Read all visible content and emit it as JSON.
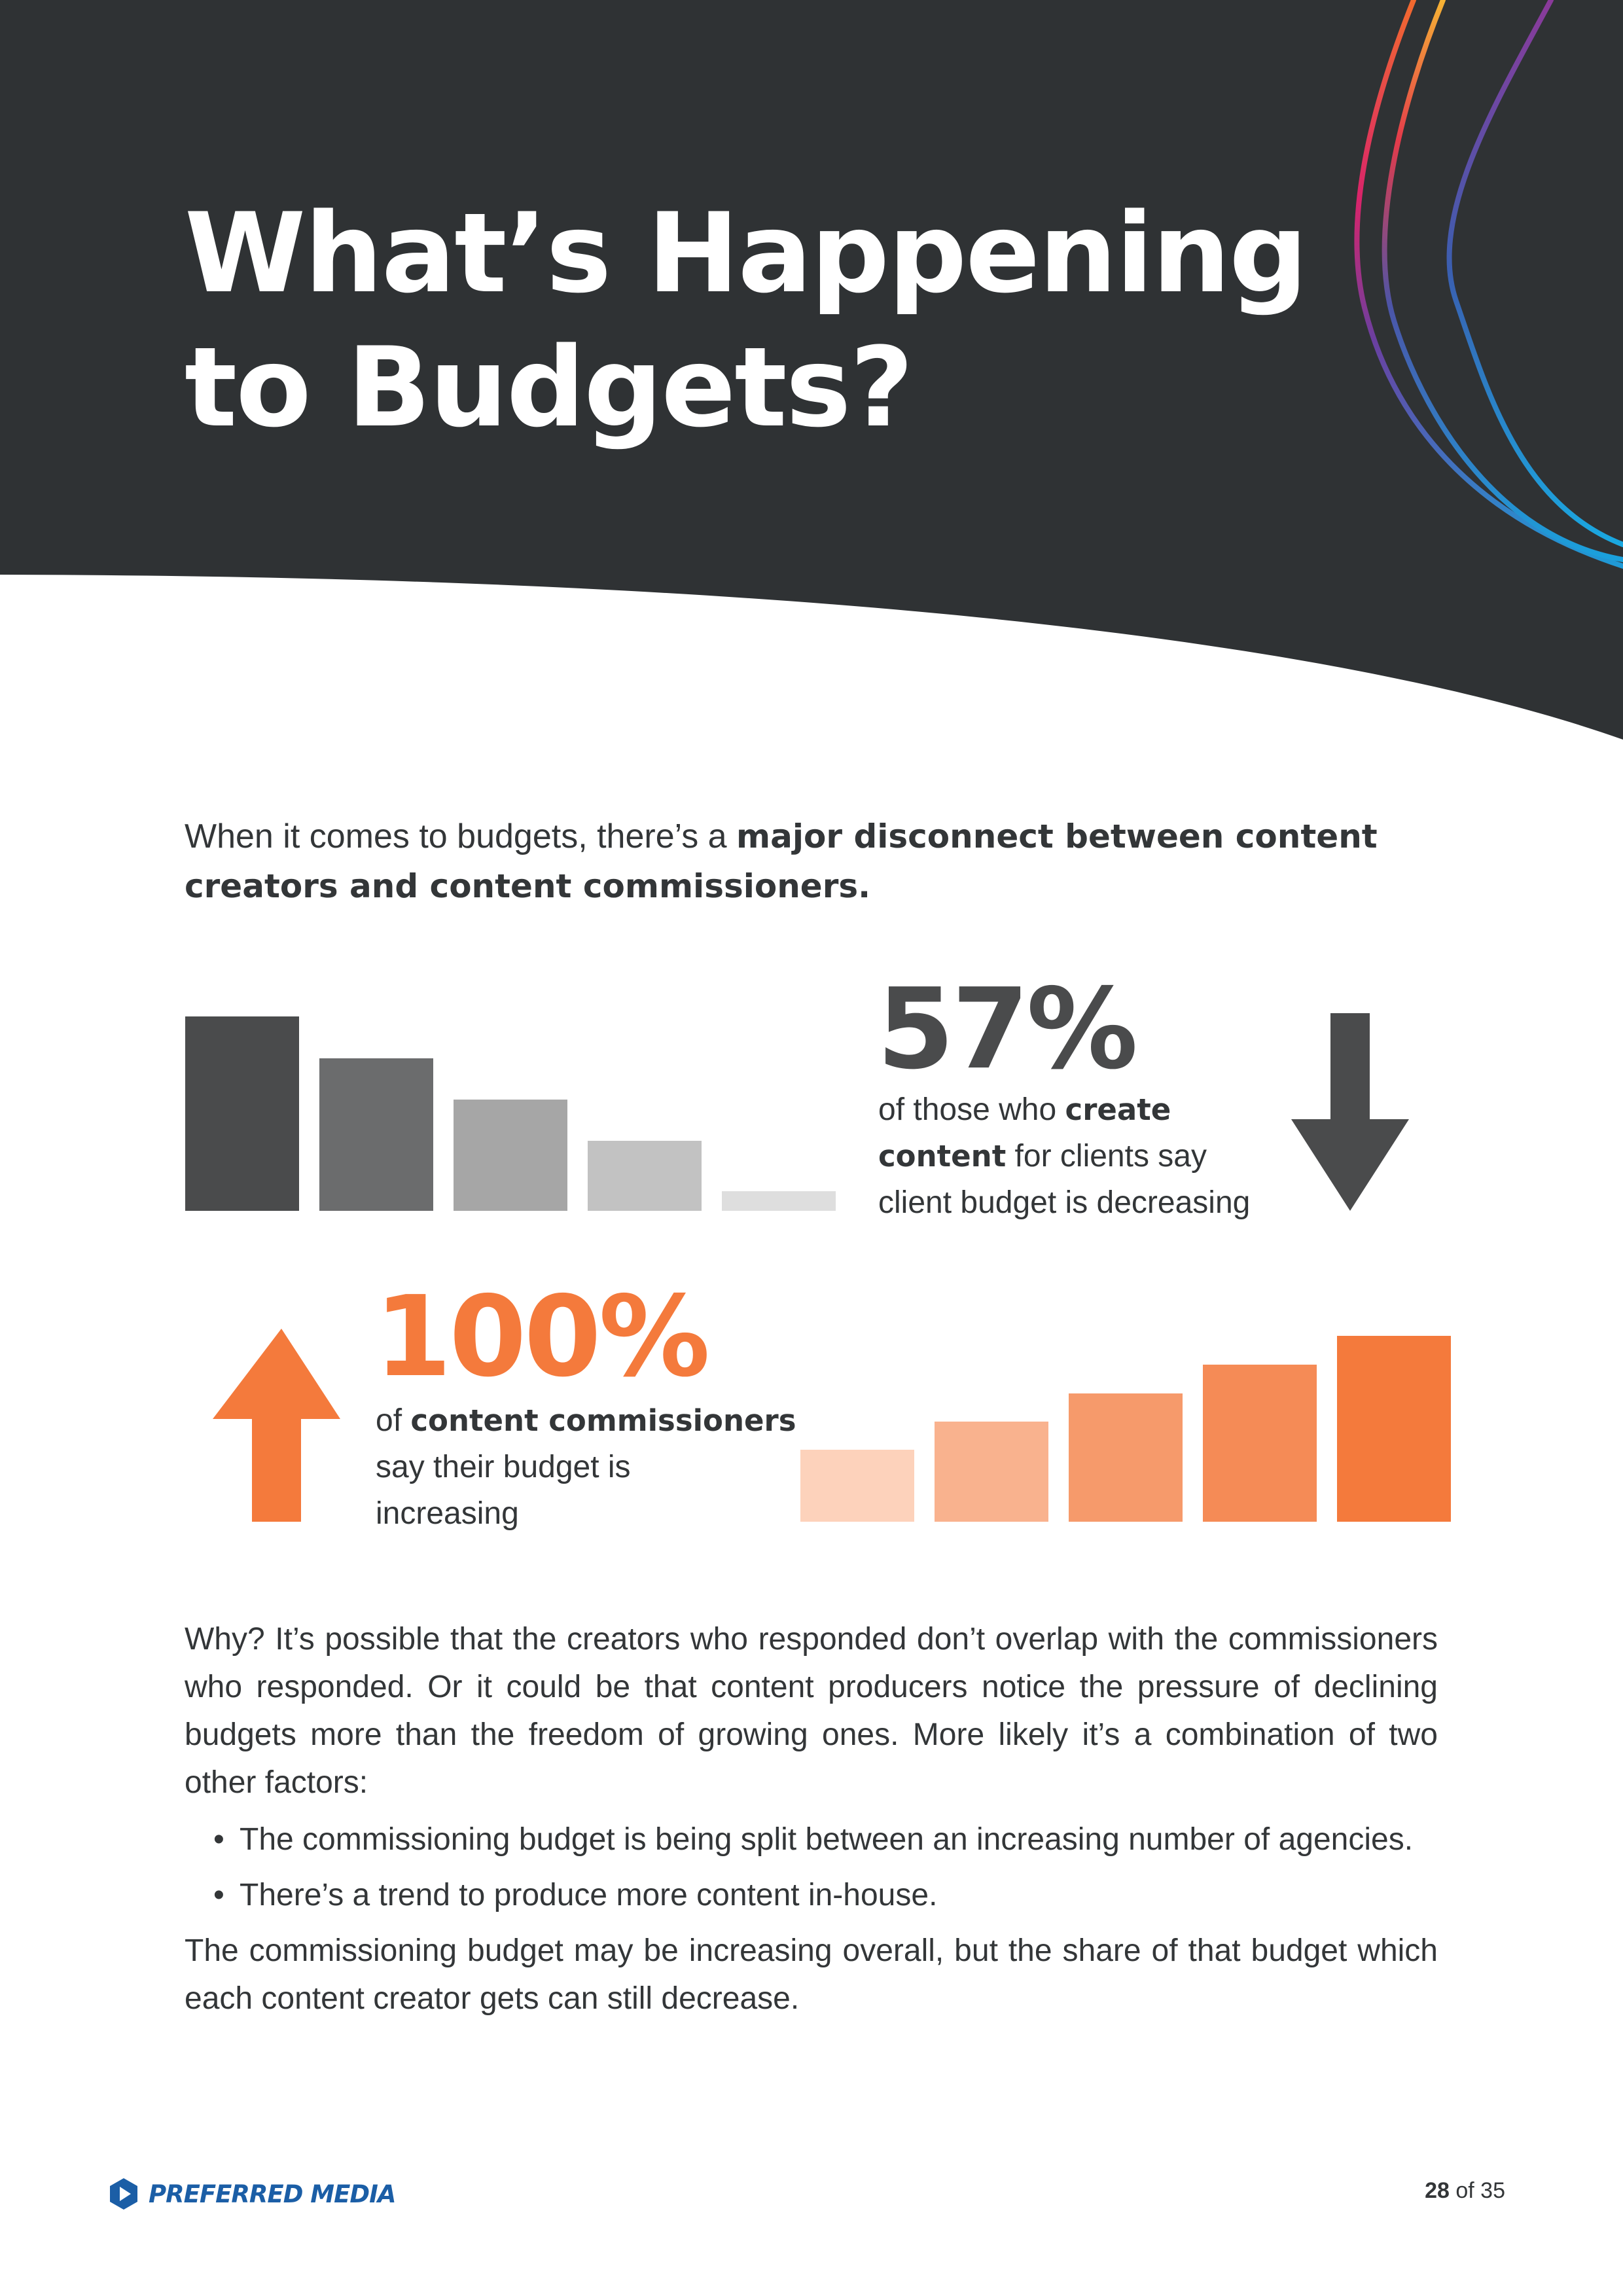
{
  "title": {
    "line1": "What’s Happening",
    "line2": "to Budgets?"
  },
  "intro": {
    "plain": "When it comes to budgets, there’s a ",
    "bold": "major disconnect between content creators and content commissioners."
  },
  "colors": {
    "header": "#2f3234",
    "decrease_bars": [
      "#4a4b4c",
      "#6b6c6d",
      "#a6a6a6",
      "#c2c2c2",
      "#dedede"
    ],
    "increase_bars": [
      "#fdd2bb",
      "#f9b28e",
      "#f69a6b",
      "#f58b56",
      "#f47a3c"
    ],
    "accent_orange": "#f47a3c",
    "brand_blue": "#1b5ea6"
  },
  "stats": {
    "decrease": {
      "number": "57%",
      "caption_l1_plain": "of those who ",
      "caption_l1_bold": "create",
      "caption_l2_bold": "content",
      "caption_l2_plain": " for clients say",
      "caption_l3": "client budget is decreasing",
      "icon": "arrow-down-icon"
    },
    "increase": {
      "number": "100%",
      "caption_l1_plain": "of ",
      "caption_l1_bold": "content commissioners",
      "caption_l2": "say their budget is",
      "caption_l3": "increasing",
      "icon": "arrow-up-icon"
    }
  },
  "body": {
    "p1": "Why? It’s possible that the creators who responded don’t overlap with the commissioners who responded. Or it could be that content producers notice the pressure of declining budgets more than the freedom of growing ones. More likely it’s a combination of two other factors:",
    "bullets": [
      "The commissioning budget is being split between an increasing number of agencies.",
      "There’s a trend to produce more content in-house."
    ],
    "p2": "The commissioning budget may be increasing overall, but the share of that budget which each content creator gets can still decrease."
  },
  "footer": {
    "brand": "PREFERRED MEDIA",
    "logo_icon": "play-hexagon-icon",
    "page_current": "28",
    "page_sep": " of ",
    "page_total": "35"
  }
}
